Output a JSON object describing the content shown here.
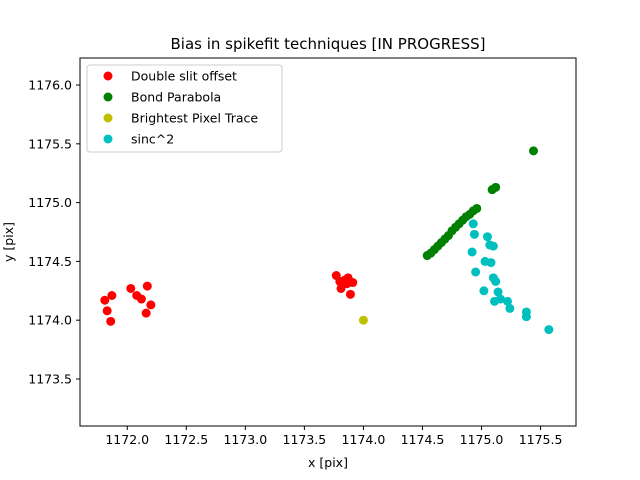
{
  "chart_data": {
    "type": "scatter",
    "title": "Bias in spikefit techniques [IN PROGRESS]",
    "xlabel": "x [pix]",
    "ylabel": "y [pix]",
    "xlim": [
      1171.6,
      1175.8
    ],
    "ylim": [
      1173.1,
      1176.23
    ],
    "xticks": [
      1172.0,
      1172.5,
      1173.0,
      1173.5,
      1174.0,
      1174.5,
      1175.0,
      1175.5
    ],
    "xtick_labels": [
      "1172.0",
      "1172.5",
      "1173.0",
      "1173.5",
      "1174.0",
      "1174.5",
      "1175.0",
      "1175.5"
    ],
    "yticks": [
      1173.5,
      1174.0,
      1174.5,
      1175.0,
      1175.5,
      1176.0
    ],
    "ytick_labels": [
      "1173.5",
      "1174.0",
      "1174.5",
      "1175.0",
      "1175.5",
      "1176.0"
    ],
    "grid": false,
    "legend_position": "upper-left",
    "series": [
      {
        "name": "Double slit offset",
        "color": "#ff0000",
        "points": [
          [
            1171.81,
            1174.17
          ],
          [
            1171.83,
            1174.08
          ],
          [
            1171.86,
            1173.99
          ],
          [
            1171.87,
            1174.21
          ],
          [
            1172.03,
            1174.27
          ],
          [
            1172.08,
            1174.21
          ],
          [
            1172.12,
            1174.18
          ],
          [
            1172.16,
            1174.06
          ],
          [
            1172.17,
            1174.29
          ],
          [
            1172.2,
            1174.13
          ],
          [
            1173.77,
            1174.38
          ],
          [
            1173.8,
            1174.33
          ],
          [
            1173.81,
            1174.27
          ],
          [
            1173.82,
            1174.3
          ],
          [
            1173.84,
            1174.34
          ],
          [
            1173.86,
            1174.31
          ],
          [
            1173.87,
            1174.36
          ],
          [
            1173.89,
            1174.22
          ],
          [
            1173.91,
            1174.32
          ]
        ]
      },
      {
        "name": "Bond Parabola",
        "color": "#008000",
        "points": [
          [
            1174.54,
            1174.55
          ],
          [
            1174.57,
            1174.57
          ],
          [
            1174.6,
            1174.6
          ],
          [
            1174.63,
            1174.63
          ],
          [
            1174.66,
            1174.66
          ],
          [
            1174.69,
            1174.69
          ],
          [
            1174.72,
            1174.72
          ],
          [
            1174.75,
            1174.76
          ],
          [
            1174.78,
            1174.79
          ],
          [
            1174.81,
            1174.82
          ],
          [
            1174.84,
            1174.85
          ],
          [
            1174.87,
            1174.88
          ],
          [
            1174.9,
            1174.9
          ],
          [
            1174.93,
            1174.93
          ],
          [
            1174.96,
            1174.95
          ],
          [
            1175.09,
            1175.11
          ],
          [
            1175.12,
            1175.13
          ],
          [
            1175.44,
            1175.44
          ]
        ]
      },
      {
        "name": "Brightest Pixel Trace",
        "color": "#bfbf00",
        "points": [
          [
            1174.0,
            1174.0
          ]
        ]
      },
      {
        "name": "sinc^2",
        "color": "#00bfbf",
        "points": [
          [
            1174.93,
            1174.82
          ],
          [
            1174.94,
            1174.73
          ],
          [
            1175.05,
            1174.71
          ],
          [
            1174.92,
            1174.58
          ],
          [
            1175.07,
            1174.64
          ],
          [
            1175.1,
            1174.63
          ],
          [
            1175.03,
            1174.5
          ],
          [
            1175.08,
            1174.49
          ],
          [
            1174.95,
            1174.41
          ],
          [
            1175.1,
            1174.36
          ],
          [
            1175.12,
            1174.33
          ],
          [
            1175.02,
            1174.25
          ],
          [
            1175.14,
            1174.24
          ],
          [
            1175.11,
            1174.16
          ],
          [
            1175.16,
            1174.18
          ],
          [
            1175.22,
            1174.16
          ],
          [
            1175.24,
            1174.1
          ],
          [
            1175.38,
            1174.07
          ],
          [
            1175.38,
            1174.03
          ],
          [
            1175.57,
            1173.92
          ]
        ]
      }
    ]
  }
}
